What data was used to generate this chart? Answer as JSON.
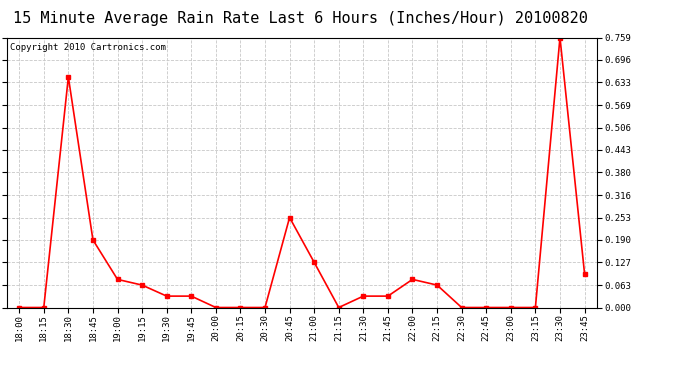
{
  "title": "15 Minute Average Rain Rate Last 6 Hours (Inches/Hour) 20100820",
  "copyright": "Copyright 2010 Cartronics.com",
  "x_labels": [
    "18:00",
    "18:15",
    "18:30",
    "18:45",
    "19:00",
    "19:15",
    "19:30",
    "19:45",
    "20:00",
    "20:15",
    "20:30",
    "20:45",
    "21:00",
    "21:15",
    "21:30",
    "21:45",
    "22:00",
    "22:15",
    "22:30",
    "22:45",
    "23:00",
    "23:15",
    "23:30",
    "23:45"
  ],
  "y_values": [
    0.0,
    0.0,
    0.648,
    0.19,
    0.079,
    0.063,
    0.032,
    0.032,
    0.0,
    0.0,
    0.0,
    0.253,
    0.127,
    0.0,
    0.032,
    0.032,
    0.079,
    0.063,
    0.0,
    0.0,
    0.0,
    0.0,
    0.759,
    0.095
  ],
  "line_color": "#ff0000",
  "marker": "s",
  "marker_size": 2.5,
  "line_width": 1.2,
  "bg_color": "#ffffff",
  "plot_bg_color": "#ffffff",
  "grid_color": "#c8c8c8",
  "grid_style": "--",
  "y_min": 0.0,
  "y_max": 0.759,
  "y_ticks": [
    0.0,
    0.063,
    0.127,
    0.19,
    0.253,
    0.316,
    0.38,
    0.443,
    0.506,
    0.569,
    0.633,
    0.696,
    0.759
  ],
  "title_fontsize": 11,
  "copyright_fontsize": 6.5,
  "tick_fontsize": 6.5,
  "border_color": "#000000"
}
